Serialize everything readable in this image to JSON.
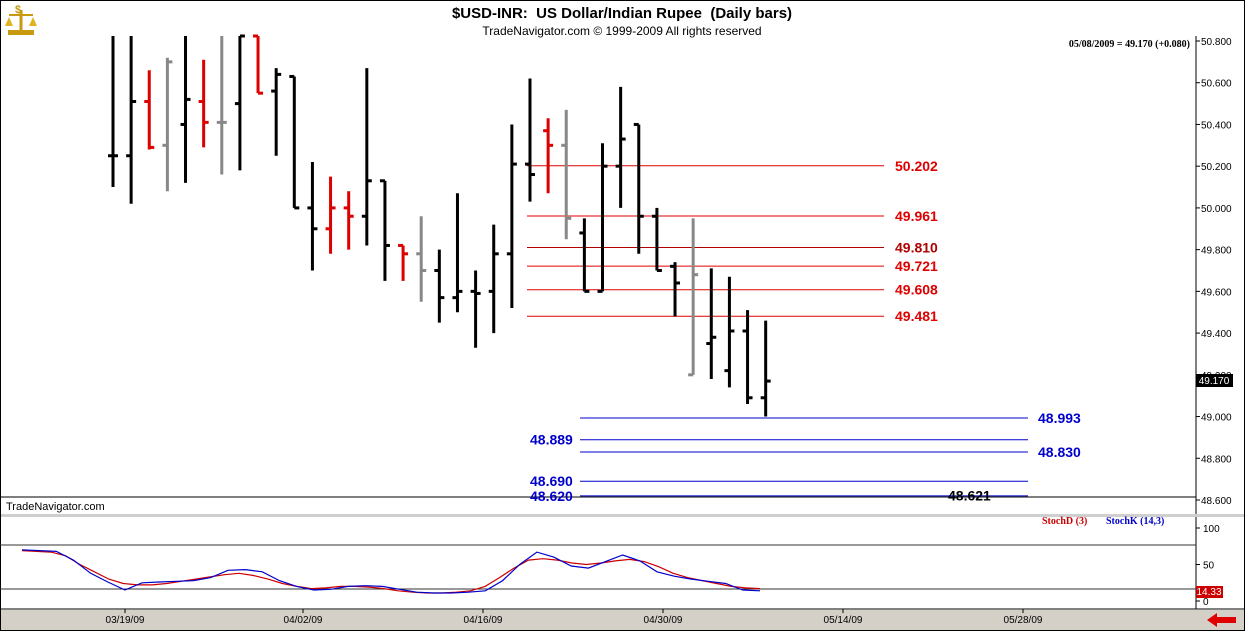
{
  "header": {
    "title": "$USD-INR:  US Dollar/Indian Rupee  (Daily bars)",
    "copyright": "TradeNavigator.com © 1999-2009 All rights reserved",
    "quote_readout": "05/08/2009 = 49.170 (+0.080)",
    "logo_icon": "scales-dollar-icon"
  },
  "watermark": "TradeNavigator.com",
  "indicator_legend": {
    "stoch_d": "StochD (3)",
    "stoch_k": "StochK (14,3)",
    "stoch_d_color": "#cc0000",
    "stoch_k_color": "#0000cc"
  },
  "last_price_tag": "49.170",
  "indicator_value_tag": "14.33",
  "chart_data": {
    "type": "ohlc",
    "price_axis": {
      "ylim": [
        48.55,
        50.8
      ],
      "ticks": [
        "50.800",
        "50.600",
        "50.400",
        "50.200",
        "50.000",
        "49.800",
        "49.600",
        "49.400",
        "49.200",
        "49.000",
        "48.800",
        "48.600"
      ]
    },
    "date_ticks": [
      "03/19/09",
      "04/02/09",
      "04/16/09",
      "04/30/09",
      "05/14/09",
      "05/28/09"
    ],
    "bars": [
      {
        "o": 50.25,
        "h": 50.85,
        "l": 50.1,
        "c": 50.25,
        "color": "#000000"
      },
      {
        "o": 50.25,
        "h": 50.85,
        "l": 50.02,
        "c": 50.51,
        "color": "#000000"
      },
      {
        "o": 50.51,
        "h": 50.66,
        "l": 50.28,
        "c": 50.29,
        "color": "#dd0000"
      },
      {
        "o": 50.3,
        "h": 50.72,
        "l": 50.08,
        "c": 50.7,
        "color": "#888888"
      },
      {
        "o": 50.4,
        "h": 50.85,
        "l": 50.12,
        "c": 50.52,
        "color": "#000000"
      },
      {
        "o": 50.51,
        "h": 50.71,
        "l": 50.29,
        "c": 50.41,
        "color": "#dd0000"
      },
      {
        "o": 50.41,
        "h": 50.85,
        "l": 50.16,
        "c": 50.41,
        "color": "#888888"
      },
      {
        "o": 50.5,
        "h": 50.85,
        "l": 50.18,
        "c": 50.85,
        "color": "#000000"
      },
      {
        "o": 50.85,
        "h": 50.85,
        "l": 50.55,
        "c": 50.55,
        "color": "#dd0000"
      },
      {
        "o": 50.56,
        "h": 50.67,
        "l": 50.25,
        "c": 50.64,
        "color": "#000000"
      },
      {
        "o": 50.63,
        "h": 50.63,
        "l": 50.0,
        "c": 50.0,
        "color": "#000000"
      },
      {
        "o": 50.0,
        "h": 50.22,
        "l": 49.7,
        "c": 49.9,
        "color": "#000000"
      },
      {
        "o": 49.9,
        "h": 50.15,
        "l": 49.78,
        "c": 50.0,
        "color": "#dd0000"
      },
      {
        "o": 50.0,
        "h": 50.08,
        "l": 49.8,
        "c": 49.96,
        "color": "#dd0000"
      },
      {
        "o": 49.96,
        "h": 50.67,
        "l": 49.82,
        "c": 50.13,
        "color": "#000000"
      },
      {
        "o": 50.13,
        "h": 50.13,
        "l": 49.65,
        "c": 49.82,
        "color": "#000000"
      },
      {
        "o": 49.82,
        "h": 49.82,
        "l": 49.65,
        "c": 49.78,
        "color": "#dd0000"
      },
      {
        "o": 49.78,
        "h": 49.96,
        "l": 49.55,
        "c": 49.7,
        "color": "#888888"
      },
      {
        "o": 49.7,
        "h": 49.8,
        "l": 49.45,
        "c": 49.57,
        "color": "#000000"
      },
      {
        "o": 49.57,
        "h": 50.07,
        "l": 49.5,
        "c": 49.6,
        "color": "#000000"
      },
      {
        "o": 49.6,
        "h": 49.7,
        "l": 49.33,
        "c": 49.59,
        "color": "#000000"
      },
      {
        "o": 49.6,
        "h": 49.92,
        "l": 49.4,
        "c": 49.78,
        "color": "#000000"
      },
      {
        "o": 49.78,
        "h": 50.4,
        "l": 49.52,
        "c": 50.21,
        "color": "#000000"
      },
      {
        "o": 50.21,
        "h": 50.62,
        "l": 50.03,
        "c": 50.16,
        "color": "#000000"
      },
      {
        "o": 50.37,
        "h": 50.43,
        "l": 50.07,
        "c": 50.3,
        "color": "#dd0000"
      },
      {
        "o": 50.3,
        "h": 50.47,
        "l": 49.85,
        "c": 49.95,
        "color": "#888888"
      },
      {
        "o": 49.88,
        "h": 49.95,
        "l": 49.6,
        "c": 49.6,
        "color": "#000000"
      },
      {
        "o": 49.6,
        "h": 50.31,
        "l": 49.6,
        "c": 50.2,
        "color": "#000000"
      },
      {
        "o": 50.2,
        "h": 50.58,
        "l": 50.0,
        "c": 50.33,
        "color": "#000000"
      },
      {
        "o": 50.4,
        "h": 50.4,
        "l": 49.78,
        "c": 49.96,
        "color": "#000000"
      },
      {
        "o": 49.96,
        "h": 50.0,
        "l": 49.7,
        "c": 49.7,
        "color": "#000000"
      },
      {
        "o": 49.72,
        "h": 49.74,
        "l": 49.48,
        "c": 49.64,
        "color": "#000000"
      },
      {
        "o": 49.2,
        "h": 49.95,
        "l": 49.2,
        "c": 49.68,
        "color": "#888888"
      },
      {
        "o": 49.35,
        "h": 49.71,
        "l": 49.18,
        "c": 49.38,
        "color": "#000000"
      },
      {
        "o": 49.22,
        "h": 49.67,
        "l": 49.14,
        "c": 49.41,
        "color": "#000000"
      },
      {
        "o": 49.41,
        "h": 49.51,
        "l": 49.06,
        "c": 49.09,
        "color": "#000000"
      },
      {
        "o": 49.09,
        "h": 49.46,
        "l": 49.0,
        "c": 49.17,
        "color": "#000000"
      }
    ],
    "resistance_levels": [
      {
        "value": 50.202,
        "label": "50.202",
        "color": "#e00000"
      },
      {
        "value": 49.961,
        "label": "49.961",
        "color": "#e00000"
      },
      {
        "value": 49.81,
        "label": "49.810",
        "color": "#b00000"
      },
      {
        "value": 49.721,
        "label": "49.721",
        "color": "#e00000"
      },
      {
        "value": 49.608,
        "label": "49.608",
        "color": "#e00000"
      },
      {
        "value": 49.481,
        "label": "49.481",
        "color": "#e00000"
      }
    ],
    "support_levels": [
      {
        "value": 48.993,
        "label": "48.993",
        "label_side": "right",
        "color": "#0000cc"
      },
      {
        "value": 48.889,
        "label": "48.889",
        "label_side": "left",
        "color": "#0000cc"
      },
      {
        "value": 48.83,
        "label": "48.830",
        "label_side": "right",
        "color": "#0000cc"
      },
      {
        "value": 48.69,
        "label": "48.690",
        "label_side": "left",
        "color": "#0000cc"
      },
      {
        "value": 48.62,
        "label": "48.620",
        "label_side": "left",
        "color": "#0000cc"
      }
    ],
    "extra_label": {
      "value": 48.621,
      "label": "48.621",
      "color": "#000000"
    },
    "stochastic": {
      "ylim": [
        0,
        100
      ],
      "ticks": [
        "100",
        "50",
        "0"
      ],
      "stoch_d": [
        69,
        68,
        67,
        62,
        50,
        40,
        30,
        24,
        22,
        22,
        24,
        27,
        30,
        33,
        36,
        38,
        35,
        30,
        24,
        20,
        17,
        18,
        20,
        20,
        19,
        17,
        14,
        12,
        11,
        11,
        12,
        14,
        20,
        32,
        45,
        56,
        58,
        56,
        52,
        50,
        52,
        55,
        57,
        54,
        47,
        38,
        32,
        28,
        24,
        20,
        18,
        17
      ],
      "stoch_k": [
        70,
        69,
        68,
        56,
        38,
        26,
        15,
        25,
        26,
        27,
        28,
        32,
        42,
        43,
        40,
        28,
        20,
        15,
        16,
        20,
        21,
        20,
        16,
        12,
        11,
        11,
        12,
        14,
        28,
        50,
        67,
        60,
        48,
        45,
        54,
        63,
        55,
        40,
        34,
        30,
        27,
        24,
        15,
        14
      ]
    }
  }
}
